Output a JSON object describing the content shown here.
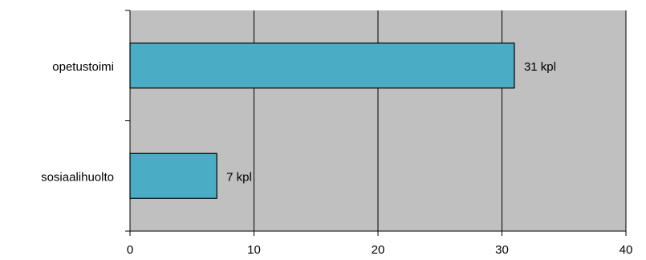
{
  "chart_data": {
    "type": "bar",
    "orientation": "horizontal",
    "categories": [
      "opetustoimi",
      "sosiaalihuolto"
    ],
    "values": [
      31,
      7
    ],
    "data_labels": [
      "31 kpl",
      "7 kpl"
    ],
    "xlim": [
      0,
      40
    ],
    "xticks": [
      0,
      10,
      20,
      30,
      40
    ],
    "title": "",
    "xlabel": "",
    "ylabel": "",
    "grid": "vertical",
    "legend": "none",
    "colors": {
      "plot_background": "#c0c0c0",
      "bar_fill": "#4bacc6",
      "bar_border": "#000000",
      "grid": "#000000"
    }
  }
}
